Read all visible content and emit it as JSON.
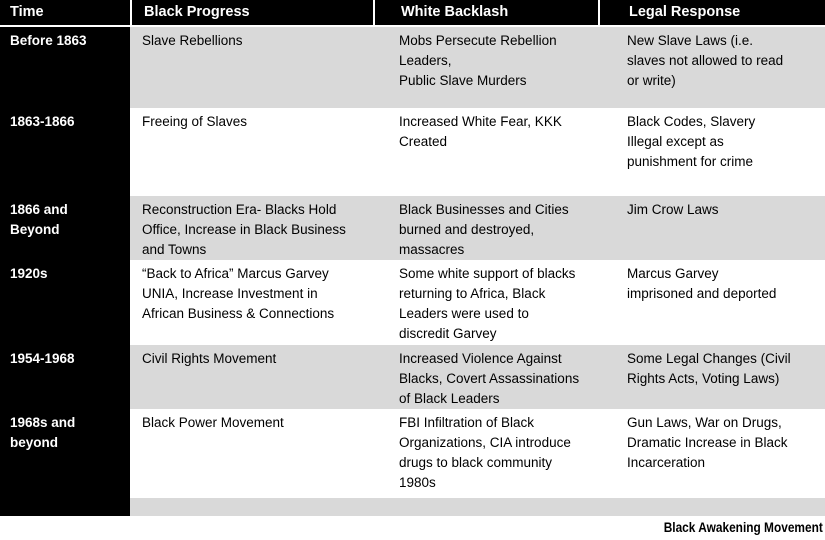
{
  "slide": {
    "title": "Black Awakening Movement"
  },
  "colors": {
    "header_bg": "#000000",
    "header_text": "#ffffff",
    "row_shade": "#d9d9d9",
    "body_text": "#000000"
  },
  "table": {
    "headers": [
      "Time",
      "Black Progress",
      "White Backlash",
      "Legal Response"
    ],
    "rows": [
      {
        "time": "Before 1863",
        "progress": "Slave Rebellions",
        "backlash": "Mobs Persecute Rebellion\nLeaders,\nPublic Slave Murders",
        "legal": "New Slave Laws (i.e.\nslaves not allowed to read\nor write)"
      },
      {
        "time": "1863-1866",
        "progress": "Freeing of Slaves",
        "backlash": "Increased White Fear, KKK\nCreated",
        "legal": "Black Codes, Slavery\nIllegal except as\npunishment for crime"
      },
      {
        "time": "1866 and\nBeyond",
        "progress": "Reconstruction Era- Blacks Hold\nOffice,  Increase in Black Business\nand Towns",
        "backlash": "Black Businesses and Cities\nburned and destroyed,\nmassacres",
        "legal": "Jim Crow Laws"
      },
      {
        "time": "1920s",
        "progress": "“Back to Africa” Marcus Garvey\nUNIA, Increase Investment in\nAfrican Business & Connections",
        "backlash": "Some white support of blacks\nreturning to Africa, Black\nLeaders were used to\ndiscredit Garvey",
        "legal": "Marcus Garvey\nimprisoned and deported"
      },
      {
        "time": "1954-1968",
        "progress": "Civil Rights Movement",
        "backlash": "Increased Violence Against\nBlacks, Covert Assassinations\nof Black Leaders",
        "legal": "Some Legal Changes (Civil\nRights Acts, Voting Laws)"
      },
      {
        "time": "1968s and\nbeyond",
        "progress": "Black Power Movement",
        "backlash": "FBI Infiltration of Black\nOrganizations, CIA introduce\ndrugs to black community\n1980s",
        "legal": "Gun Laws, War on Drugs,\nDramatic Increase in Black\nIncarceration"
      },
      {
        "time": "",
        "progress": "",
        "backlash": "",
        "legal": ""
      }
    ]
  }
}
